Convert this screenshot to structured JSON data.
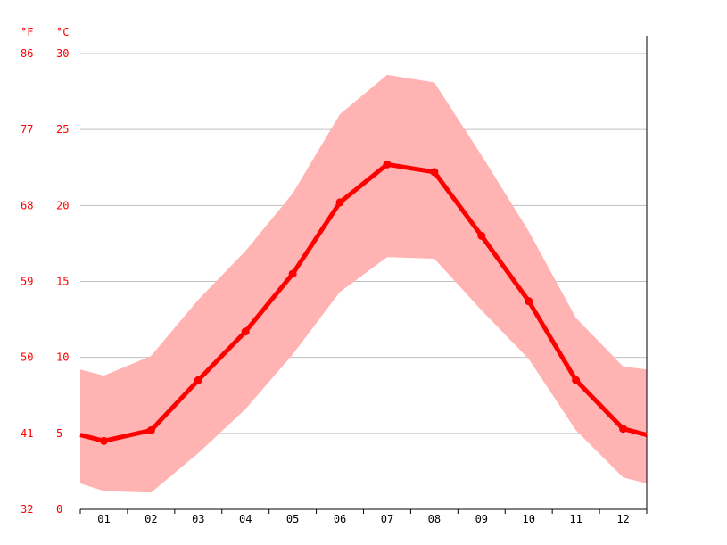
{
  "chart_data": {
    "type": "line",
    "units": {
      "fahrenheit": "°F",
      "celsius": "°C"
    },
    "y_ticks_celsius": [
      0,
      5,
      10,
      15,
      20,
      25,
      30
    ],
    "y_ticks_fahrenheit": [
      32,
      41,
      50,
      59,
      68,
      77,
      86
    ],
    "ylim": [
      0,
      30
    ],
    "grid": true,
    "categories": [
      "01",
      "02",
      "03",
      "04",
      "05",
      "06",
      "07",
      "08",
      "09",
      "10",
      "11",
      "12"
    ],
    "series": [
      {
        "values": [
          4.5,
          5.2,
          8.5,
          11.7,
          15.5,
          20.2,
          22.7,
          22.2,
          18.0,
          13.7,
          8.5,
          5.3
        ]
      }
    ],
    "range_low": [
      1.2,
      1.1,
      3.7,
      6.6,
      10.2,
      14.3,
      16.6,
      16.5,
      13.1,
      9.9,
      5.2,
      2.1
    ],
    "range_high": [
      8.8,
      10.1,
      13.8,
      17.0,
      20.8,
      26.0,
      28.6,
      28.1,
      23.3,
      18.3,
      12.6,
      9.4
    ],
    "edge_start": {
      "mean": 4.9,
      "low": 1.7,
      "high": 9.2
    },
    "edge_end": {
      "mean": 4.9,
      "low": 1.7,
      "high": 9.2
    },
    "colors": {
      "line": "#ff0000",
      "band": "#ffb3b3",
      "grid": "#c0c0c0",
      "axis": "#000000",
      "ylabels": "#ff0000"
    }
  }
}
